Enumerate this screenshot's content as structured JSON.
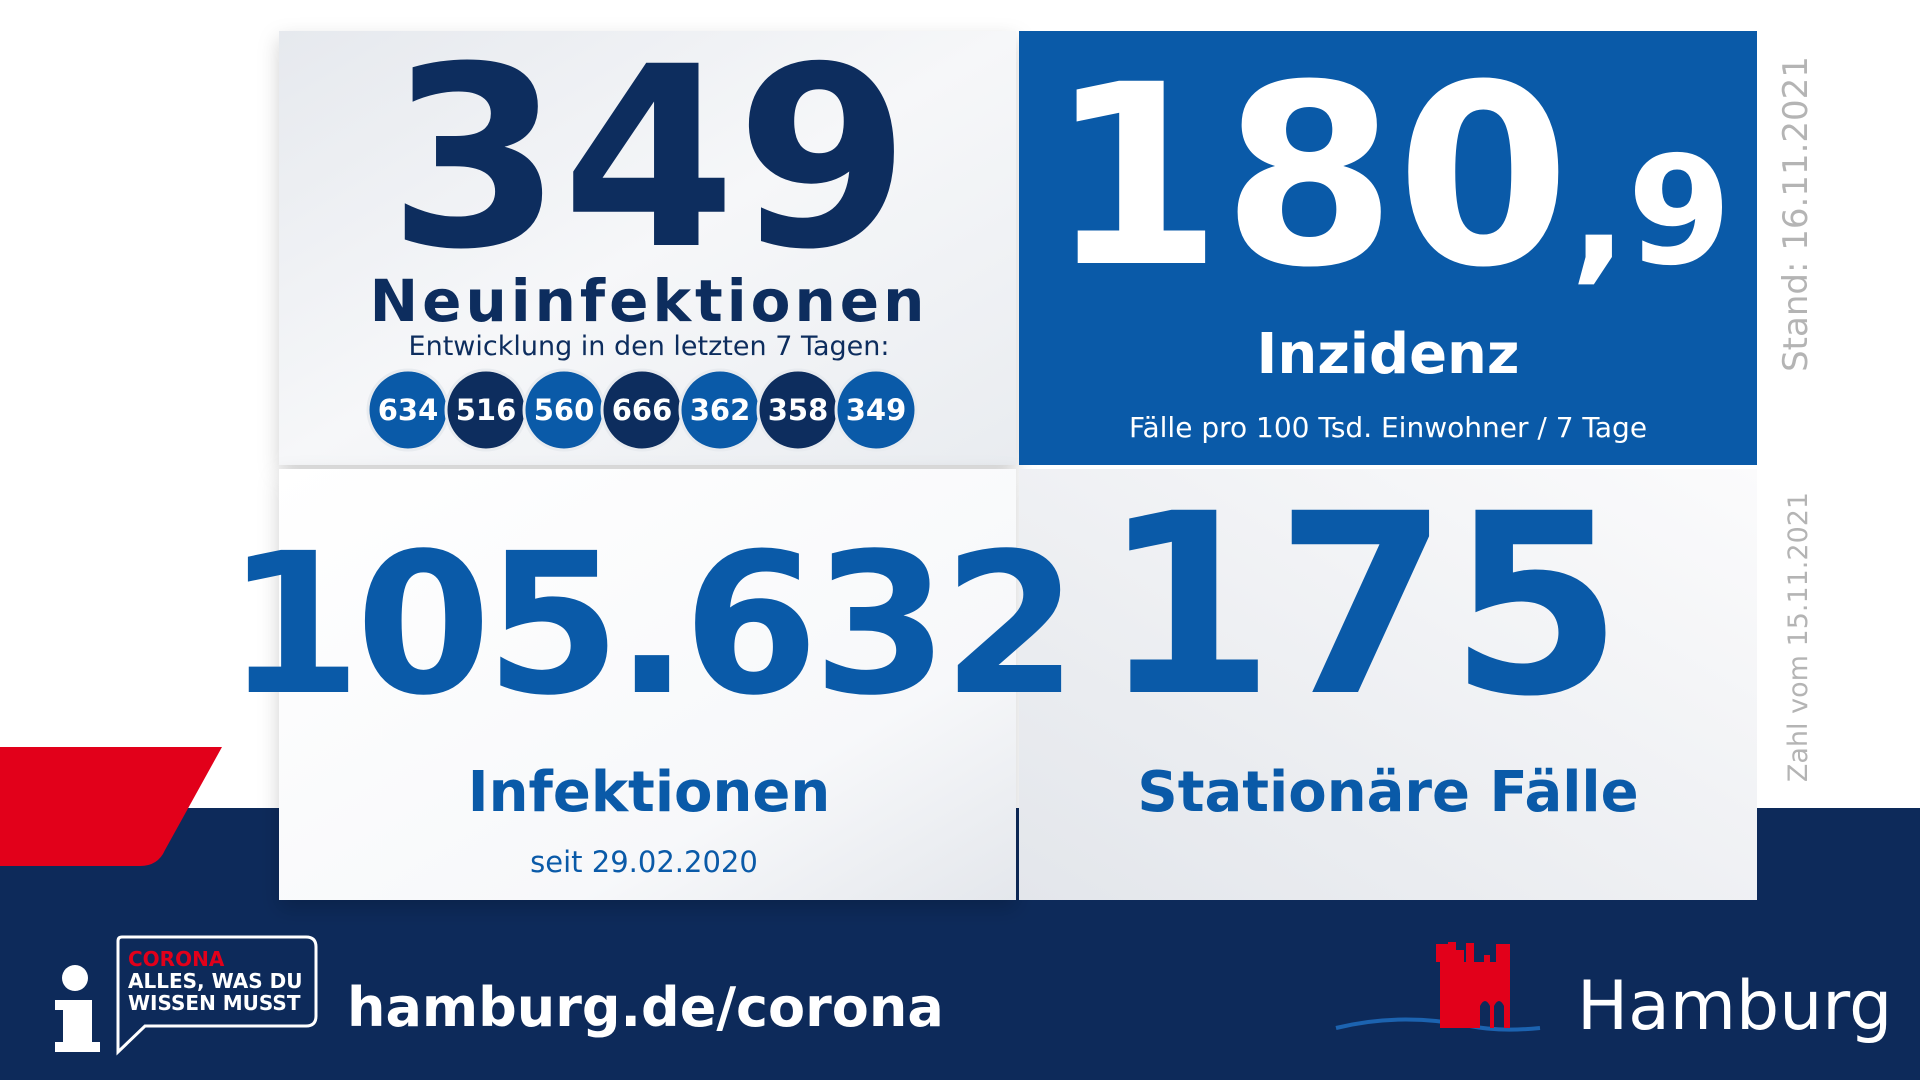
{
  "new_infections": {
    "value": "349",
    "label": "Neuinfektionen",
    "subtitle": "Entwicklung in den letzten 7 Tagen:",
    "history": [
      "634",
      "516",
      "560",
      "666",
      "362",
      "358",
      "349"
    ]
  },
  "incidence": {
    "value_integer": "180",
    "value_decimal": ",9",
    "label": "Inzidenz",
    "unit": "Fälle pro 100 Tsd. Einwohner / 7 Tage"
  },
  "total_infections": {
    "value": "105.632",
    "label": "Infektionen",
    "since": "seit 29.02.2020"
  },
  "hospitalized": {
    "value": "175",
    "label": "Stationäre Fälle"
  },
  "side_notes": [
    "Stand: 16.11.2021",
    "Zahl vom 15.11.2021"
  ],
  "footer": {
    "badge": [
      "CORONA",
      "ALLES, WAS DU",
      "WISSEN MUSST"
    ],
    "url": "hamburg.de/corona",
    "brand": "Hamburg"
  }
}
